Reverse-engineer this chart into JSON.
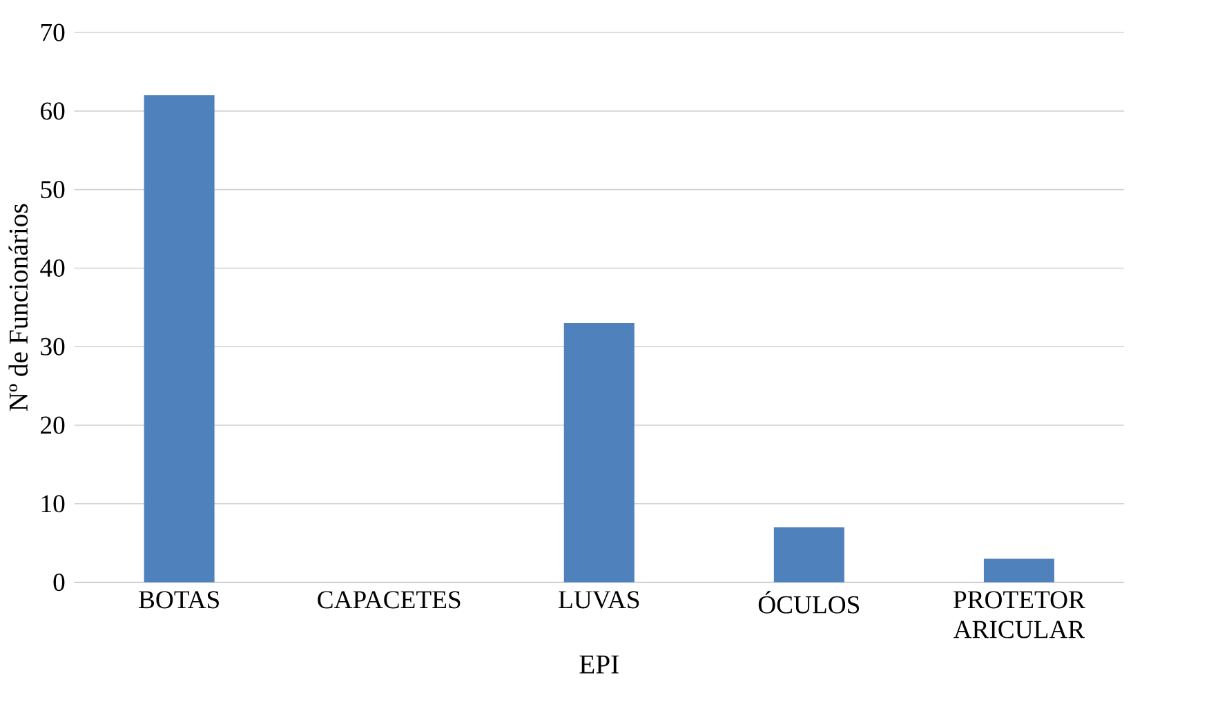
{
  "chart_data": {
    "type": "bar",
    "xlabel": "EPI",
    "ylabel": "Nº de Funcionários",
    "categories": [
      "BOTAS",
      "CAPACETES",
      "LUVAS",
      "ÓCULOS",
      "PROTETOR ARICULAR"
    ],
    "values": [
      62,
      0,
      33,
      7,
      3
    ],
    "color": "#4f81bd",
    "ylim": [
      0,
      70
    ],
    "yticks": [
      0,
      10,
      20,
      30,
      40,
      50,
      60,
      70
    ],
    "grid": "y"
  }
}
